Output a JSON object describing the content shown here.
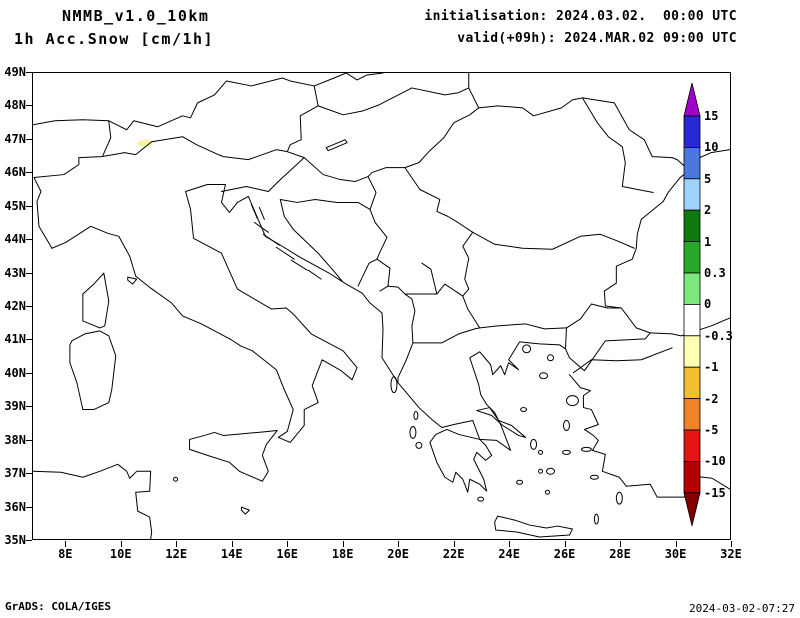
{
  "header": {
    "model": "NMMB_v1.0_10km",
    "variable": "1h Acc.Snow [cm/1h]",
    "init_line": "initialisation: 2024.03.02.  00:00 UTC",
    "valid_line": "valid(+09h): 2024.MAR.02 09:00 UTC"
  },
  "map": {
    "lat_labels": [
      "49N",
      "48N",
      "47N",
      "46N",
      "45N",
      "44N",
      "43N",
      "42N",
      "41N",
      "40N",
      "39N",
      "38N",
      "37N",
      "36N",
      "35N"
    ],
    "lon_labels": [
      "8E",
      "10E",
      "12E",
      "14E",
      "16E",
      "18E",
      "20E",
      "22E",
      "24E",
      "26E",
      "28E",
      "30E",
      "32E"
    ],
    "line_color": "#000000",
    "background_color": "#ffffff",
    "snow_patch_color": "#f5f5a0"
  },
  "colorbar": {
    "unit_values": [
      "15",
      "10",
      "5",
      "2",
      "1",
      "0.3",
      "0",
      "-0.3",
      "-1",
      "-2",
      "-5",
      "-10",
      "-15"
    ],
    "colors_top_to_bottom": [
      "#a000c8",
      "#2828d7",
      "#4a78dc",
      "#a0d2ff",
      "#0f7a0f",
      "#28a828",
      "#7de87d",
      "#ffffff",
      "#ffffb4",
      "#f5be32",
      "#f08228",
      "#e61414",
      "#b40000",
      "#820000"
    ]
  },
  "footer": {
    "left": "GrADS: COLA/IGES",
    "right": "2024-03-02-07:27"
  }
}
